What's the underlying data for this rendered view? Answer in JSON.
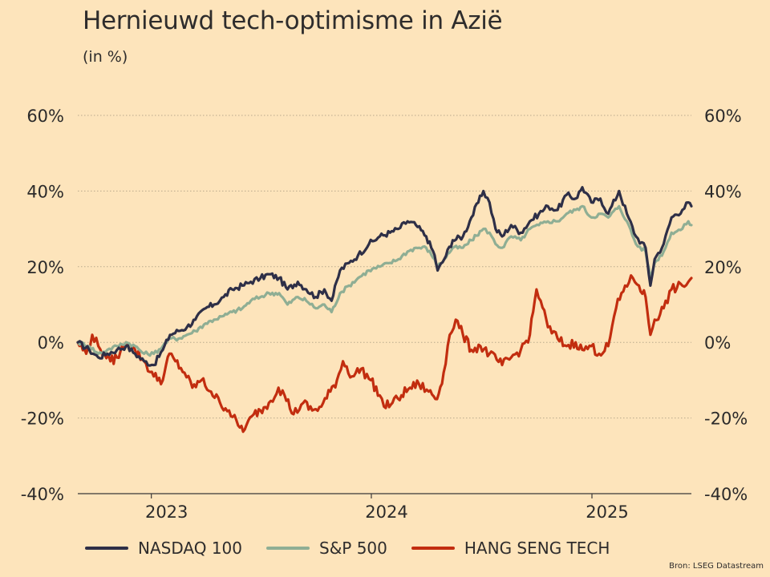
{
  "header": {
    "title": "Hernieuwd tech-optimisme in Azië",
    "subtitle": "(in %)"
  },
  "source": "Bron: LSEG Datastream",
  "chart_data": {
    "type": "line",
    "xlim": [
      "2022-09-01",
      "2025-06-15"
    ],
    "ylim": [
      -40,
      60
    ],
    "y_ticks": [
      -40,
      -20,
      0,
      20,
      40,
      60
    ],
    "y_tick_labels": [
      "-40%",
      "-20%",
      "0%",
      "20%",
      "40%",
      "60%"
    ],
    "y_axis_both_sides": true,
    "x_ticks": [
      "2023-01-01",
      "2024-01-01",
      "2025-01-01"
    ],
    "x_tick_labels": [
      "2023",
      "2024",
      "2025"
    ],
    "grid": "horizontal dotted",
    "legend_position": "bottom",
    "colors": {
      "background": "#fde4bb",
      "nasdaq": "#2e2f47",
      "sp500": "#8fae94",
      "hangseng": "#c22d0f",
      "grid": "#b9a98c",
      "text": "#2b2a2a"
    },
    "series": [
      {
        "name": "NASDAQ 100",
        "color": "#2e2f47",
        "points": [
          [
            "2022-09-01",
            0
          ],
          [
            "2022-09-20",
            -2
          ],
          [
            "2022-10-05",
            -4
          ],
          [
            "2022-10-20",
            -3
          ],
          [
            "2022-11-05",
            -2
          ],
          [
            "2022-11-20",
            -1
          ],
          [
            "2022-12-05",
            -3
          ],
          [
            "2022-12-20",
            -5
          ],
          [
            "2023-01-05",
            -6
          ],
          [
            "2023-01-20",
            -2
          ],
          [
            "2023-02-01",
            2
          ],
          [
            "2023-02-15",
            3
          ],
          [
            "2023-03-01",
            4
          ],
          [
            "2023-03-15",
            6
          ],
          [
            "2023-04-01",
            9
          ],
          [
            "2023-04-15",
            10
          ],
          [
            "2023-05-01",
            12
          ],
          [
            "2023-05-15",
            14
          ],
          [
            "2023-06-01",
            15
          ],
          [
            "2023-06-15",
            16
          ],
          [
            "2023-07-01",
            17
          ],
          [
            "2023-07-15",
            18
          ],
          [
            "2023-08-01",
            17
          ],
          [
            "2023-08-15",
            14
          ],
          [
            "2023-09-01",
            16
          ],
          [
            "2023-09-15",
            14
          ],
          [
            "2023-10-01",
            12
          ],
          [
            "2023-10-15",
            14
          ],
          [
            "2023-10-27",
            11
          ],
          [
            "2023-11-10",
            19
          ],
          [
            "2023-11-25",
            21
          ],
          [
            "2023-12-10",
            23
          ],
          [
            "2023-12-28",
            26
          ],
          [
            "2024-01-15",
            28
          ],
          [
            "2024-02-01",
            29
          ],
          [
            "2024-02-15",
            30
          ],
          [
            "2024-03-01",
            32
          ],
          [
            "2024-03-15",
            31
          ],
          [
            "2024-04-01",
            28
          ],
          [
            "2024-04-15",
            23
          ],
          [
            "2024-04-20",
            19
          ],
          [
            "2024-05-01",
            22
          ],
          [
            "2024-05-15",
            27
          ],
          [
            "2024-06-01",
            28
          ],
          [
            "2024-06-15",
            33
          ],
          [
            "2024-07-05",
            40
          ],
          [
            "2024-07-15",
            37
          ],
          [
            "2024-07-25",
            30
          ],
          [
            "2024-08-05",
            28
          ],
          [
            "2024-08-20",
            31
          ],
          [
            "2024-09-05",
            29
          ],
          [
            "2024-09-20",
            32
          ],
          [
            "2024-10-05",
            34
          ],
          [
            "2024-10-20",
            36
          ],
          [
            "2024-11-05",
            35
          ],
          [
            "2024-11-20",
            39
          ],
          [
            "2024-12-05",
            38
          ],
          [
            "2024-12-16",
            41
          ],
          [
            "2024-12-31",
            37
          ],
          [
            "2025-01-15",
            38
          ],
          [
            "2025-01-28",
            34
          ],
          [
            "2025-02-15",
            40
          ],
          [
            "2025-02-28",
            34
          ],
          [
            "2025-03-15",
            28
          ],
          [
            "2025-03-31",
            25
          ],
          [
            "2025-04-08",
            15
          ],
          [
            "2025-04-15",
            22
          ],
          [
            "2025-04-30",
            26
          ],
          [
            "2025-05-13",
            33
          ],
          [
            "2025-05-31",
            35
          ],
          [
            "2025-06-10",
            37
          ],
          [
            "2025-06-15",
            36
          ]
        ]
      },
      {
        "name": "S&P 500",
        "color": "#8fae94",
        "points": [
          [
            "2022-09-01",
            0
          ],
          [
            "2022-09-20",
            -1
          ],
          [
            "2022-10-05",
            -3
          ],
          [
            "2022-10-20",
            -2
          ],
          [
            "2022-11-05",
            -1
          ],
          [
            "2022-11-20",
            0
          ],
          [
            "2022-12-05",
            -1
          ],
          [
            "2022-12-20",
            -3
          ],
          [
            "2023-01-05",
            -3
          ],
          [
            "2023-01-20",
            -1
          ],
          [
            "2023-02-01",
            1
          ],
          [
            "2023-02-15",
            1
          ],
          [
            "2023-03-01",
            2
          ],
          [
            "2023-03-15",
            3
          ],
          [
            "2023-04-01",
            5
          ],
          [
            "2023-04-15",
            6
          ],
          [
            "2023-05-01",
            7
          ],
          [
            "2023-05-15",
            8
          ],
          [
            "2023-06-01",
            9
          ],
          [
            "2023-06-15",
            11
          ],
          [
            "2023-07-01",
            12
          ],
          [
            "2023-07-15",
            13
          ],
          [
            "2023-08-01",
            13
          ],
          [
            "2023-08-15",
            10
          ],
          [
            "2023-09-01",
            12
          ],
          [
            "2023-09-15",
            11
          ],
          [
            "2023-10-01",
            9
          ],
          [
            "2023-10-15",
            10
          ],
          [
            "2023-10-27",
            8
          ],
          [
            "2023-11-10",
            13
          ],
          [
            "2023-11-25",
            15
          ],
          [
            "2023-12-10",
            17
          ],
          [
            "2023-12-28",
            19
          ],
          [
            "2024-01-15",
            20
          ],
          [
            "2024-02-01",
            21
          ],
          [
            "2024-02-15",
            22
          ],
          [
            "2024-03-01",
            24
          ],
          [
            "2024-03-15",
            25
          ],
          [
            "2024-04-01",
            25
          ],
          [
            "2024-04-15",
            22
          ],
          [
            "2024-04-20",
            20
          ],
          [
            "2024-05-01",
            22
          ],
          [
            "2024-05-15",
            25
          ],
          [
            "2024-06-01",
            25
          ],
          [
            "2024-06-15",
            27
          ],
          [
            "2024-07-05",
            30
          ],
          [
            "2024-07-15",
            29
          ],
          [
            "2024-07-25",
            26
          ],
          [
            "2024-08-05",
            25
          ],
          [
            "2024-08-20",
            28
          ],
          [
            "2024-09-05",
            27
          ],
          [
            "2024-09-20",
            30
          ],
          [
            "2024-10-05",
            31
          ],
          [
            "2024-10-20",
            32
          ],
          [
            "2024-11-05",
            32
          ],
          [
            "2024-11-20",
            34
          ],
          [
            "2024-12-05",
            35
          ],
          [
            "2024-12-16",
            36
          ],
          [
            "2024-12-31",
            33
          ],
          [
            "2025-01-15",
            34
          ],
          [
            "2025-01-28",
            33
          ],
          [
            "2025-02-15",
            36
          ],
          [
            "2025-02-28",
            32
          ],
          [
            "2025-03-15",
            26
          ],
          [
            "2025-03-31",
            24
          ],
          [
            "2025-04-08",
            17
          ],
          [
            "2025-04-15",
            21
          ],
          [
            "2025-04-30",
            24
          ],
          [
            "2025-05-13",
            29
          ],
          [
            "2025-05-31",
            30
          ],
          [
            "2025-06-10",
            32
          ],
          [
            "2025-06-15",
            31
          ]
        ]
      },
      {
        "name": "HANG SENG TECH",
        "color": "#c22d0f",
        "points": [
          [
            "2022-09-01",
            0
          ],
          [
            "2022-09-15",
            -3
          ],
          [
            "2022-09-25",
            2
          ],
          [
            "2022-10-05",
            -1
          ],
          [
            "2022-10-15",
            -3
          ],
          [
            "2022-10-25",
            -5
          ],
          [
            "2022-11-05",
            -4
          ],
          [
            "2022-11-20",
            0
          ],
          [
            "2022-12-05",
            -2
          ],
          [
            "2022-12-20",
            -5
          ],
          [
            "2023-01-05",
            -9
          ],
          [
            "2023-01-20",
            -10
          ],
          [
            "2023-01-31",
            -3
          ],
          [
            "2023-02-10",
            -5
          ],
          [
            "2023-02-25",
            -8
          ],
          [
            "2023-03-10",
            -12
          ],
          [
            "2023-03-25",
            -10
          ],
          [
            "2023-04-10",
            -13
          ],
          [
            "2023-04-25",
            -16
          ],
          [
            "2023-05-10",
            -18
          ],
          [
            "2023-05-25",
            -22
          ],
          [
            "2023-06-05",
            -23
          ],
          [
            "2023-06-20",
            -19
          ],
          [
            "2023-07-01",
            -18
          ],
          [
            "2023-07-15",
            -16
          ],
          [
            "2023-07-31",
            -12
          ],
          [
            "2023-08-10",
            -14
          ],
          [
            "2023-08-25",
            -19
          ],
          [
            "2023-09-10",
            -16
          ],
          [
            "2023-09-25",
            -18
          ],
          [
            "2023-10-10",
            -17
          ],
          [
            "2023-10-25",
            -13
          ],
          [
            "2023-11-05",
            -10
          ],
          [
            "2023-11-15",
            -5
          ],
          [
            "2023-11-30",
            -9
          ],
          [
            "2023-12-15",
            -7
          ],
          [
            "2023-12-31",
            -10
          ],
          [
            "2024-01-15",
            -14
          ],
          [
            "2024-01-22",
            -17
          ],
          [
            "2024-02-05",
            -16
          ],
          [
            "2024-02-20",
            -14
          ],
          [
            "2024-03-05",
            -12
          ],
          [
            "2024-03-20",
            -11
          ],
          [
            "2024-04-05",
            -13
          ],
          [
            "2024-04-19",
            -15
          ],
          [
            "2024-04-30",
            -8
          ],
          [
            "2024-05-10",
            2
          ],
          [
            "2024-05-20",
            6
          ],
          [
            "2024-06-01",
            2
          ],
          [
            "2024-06-15",
            -2
          ],
          [
            "2024-06-30",
            -1
          ],
          [
            "2024-07-15",
            -3
          ],
          [
            "2024-08-05",
            -6
          ],
          [
            "2024-08-20",
            -4
          ],
          [
            "2024-09-05",
            -2
          ],
          [
            "2024-09-20",
            2
          ],
          [
            "2024-10-01",
            14
          ],
          [
            "2024-10-08",
            11
          ],
          [
            "2024-10-20",
            4
          ],
          [
            "2024-11-05",
            1
          ],
          [
            "2024-11-20",
            -1
          ],
          [
            "2024-12-05",
            0
          ],
          [
            "2024-12-16",
            -2
          ],
          [
            "2024-12-31",
            -1
          ],
          [
            "2025-01-13",
            -3
          ],
          [
            "2025-01-28",
            -1
          ],
          [
            "2025-02-10",
            9
          ],
          [
            "2025-02-25",
            15
          ],
          [
            "2025-03-10",
            17
          ],
          [
            "2025-03-20",
            15
          ],
          [
            "2025-03-31",
            12
          ],
          [
            "2025-04-08",
            2
          ],
          [
            "2025-04-15",
            6
          ],
          [
            "2025-04-30",
            9
          ],
          [
            "2025-05-13",
            14
          ],
          [
            "2025-05-31",
            15
          ],
          [
            "2025-06-10",
            16
          ],
          [
            "2025-06-15",
            17
          ]
        ]
      }
    ]
  },
  "legend": [
    {
      "label": "NASDAQ 100",
      "color": "#2e2f47"
    },
    {
      "label": "S&P 500",
      "color": "#8fae94"
    },
    {
      "label": "HANG SENG TECH",
      "color": "#c22d0f"
    }
  ]
}
